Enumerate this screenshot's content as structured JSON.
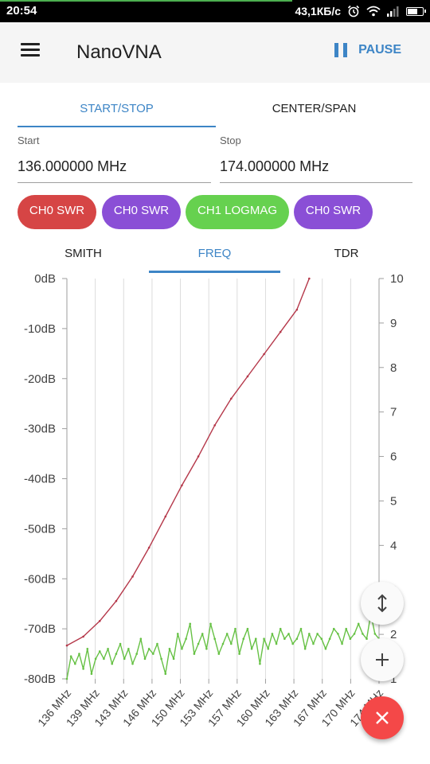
{
  "status_bar": {
    "time": "20:54",
    "network_speed": "43,1КБ/с",
    "icons": [
      "alarm-icon",
      "wifi-icon",
      "signal-icon",
      "battery-icon"
    ]
  },
  "app_bar": {
    "title": "NanoVNA",
    "pause_label": "PAUSE",
    "menu_icon": "hamburger-icon",
    "pause_icon": "pause-icon",
    "accent_color": "#3d85c6"
  },
  "range_tabs": [
    {
      "label": "START/STOP",
      "active": true
    },
    {
      "label": "CENTER/SPAN",
      "active": false
    }
  ],
  "start": {
    "label": "Start",
    "value": "136.000000 MHz"
  },
  "stop": {
    "label": "Stop",
    "value": "174.000000 MHz"
  },
  "traces": [
    {
      "label": "CH0 SWR",
      "color": "#d64545"
    },
    {
      "label": "CH0 SWR",
      "color": "#8a4fd6"
    },
    {
      "label": "CH1 LOGMAG",
      "color": "#66d14f"
    },
    {
      "label": "CH0 SWR",
      "color": "#8a4fd6"
    }
  ],
  "view_tabs": [
    {
      "label": "SMITH",
      "active": false
    },
    {
      "label": "FREQ",
      "active": true
    },
    {
      "label": "TDR",
      "active": false
    }
  ],
  "chart_data": {
    "type": "line",
    "x_unit": "MHz",
    "x_tick_labels": [
      "136 MHz",
      "139 MHz",
      "143 MHz",
      "146 MHz",
      "150 MHz",
      "153 MHz",
      "157 MHz",
      "160 MHz",
      "163 MHz",
      "167 MHz",
      "170 MHz",
      "174 MHz"
    ],
    "xlim": [
      136,
      174
    ],
    "y_left_ticks": [
      "0dB",
      "-10dB",
      "-20dB",
      "-30dB",
      "-40dB",
      "-50dB",
      "-60dB",
      "-70dB",
      "-80dB"
    ],
    "y_left_range": [
      -80,
      0
    ],
    "y_right_ticks": [
      "10",
      "9",
      "8",
      "7",
      "6",
      "5",
      "4",
      "3",
      "2",
      "1"
    ],
    "y_right_range": [
      1,
      10
    ],
    "grid": true,
    "series": [
      {
        "axis": "right",
        "color": "#b5384a",
        "x": [
          136,
          138,
          140,
          142,
          144,
          146,
          148,
          150,
          152,
          154,
          156,
          158,
          160,
          162,
          164,
          165.5
        ],
        "y": [
          1.75,
          1.95,
          2.3,
          2.75,
          3.3,
          3.95,
          4.65,
          5.35,
          6.0,
          6.7,
          7.3,
          7.8,
          8.3,
          8.8,
          9.3,
          10.0
        ]
      },
      {
        "axis": "left",
        "color": "#66c144",
        "x": [
          136,
          136.5,
          137,
          137.5,
          138,
          138.5,
          139,
          139.5,
          140,
          140.5,
          141,
          141.5,
          142,
          142.5,
          143,
          143.5,
          144,
          144.5,
          145,
          145.5,
          146,
          146.5,
          147,
          147.5,
          148,
          148.5,
          149,
          149.5,
          150,
          150.5,
          151,
          151.5,
          152,
          152.5,
          153,
          153.5,
          154,
          154.5,
          155,
          155.5,
          156,
          156.5,
          157,
          157.5,
          158,
          158.5,
          159,
          159.5,
          160,
          160.5,
          161,
          161.5,
          162,
          162.5,
          163,
          163.5,
          164,
          164.5,
          165,
          165.5,
          166,
          166.5,
          167,
          167.5,
          168,
          168.5,
          169,
          169.5,
          170,
          170.5,
          171,
          171.5,
          172,
          172.5,
          173,
          173.5,
          174
        ],
        "y": [
          -80,
          -75.5,
          -77,
          -75,
          -78,
          -74,
          -79,
          -76,
          -74.5,
          -76,
          -74,
          -77,
          -75,
          -73,
          -76,
          -74,
          -77,
          -75,
          -72,
          -76,
          -74,
          -75,
          -73,
          -76,
          -79,
          -74,
          -76,
          -71,
          -74,
          -72,
          -69,
          -75,
          -73,
          -71,
          -74,
          -69,
          -72,
          -75,
          -73,
          -71,
          -73,
          -70,
          -75,
          -72,
          -70,
          -74,
          -72,
          -77,
          -72,
          -74,
          -71,
          -73,
          -70,
          -72,
          -71,
          -73,
          -72,
          -70,
          -74,
          -71,
          -73,
          -71,
          -72,
          -74,
          -72,
          -70,
          -71,
          -73,
          -70,
          -72,
          -71,
          -69,
          -71,
          -72,
          -67,
          -71,
          -72
        ]
      }
    ]
  }
}
